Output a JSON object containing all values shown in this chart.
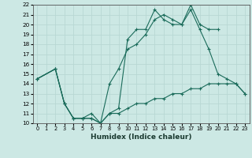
{
  "title": "",
  "xlabel": "Humidex (Indice chaleur)",
  "bg_color": "#cce8e4",
  "line_color": "#1a6b5a",
  "grid_color": "#b8d8d4",
  "xlim": [
    -0.5,
    23.5
  ],
  "ylim": [
    10,
    22
  ],
  "xticks": [
    0,
    1,
    2,
    3,
    4,
    5,
    6,
    7,
    8,
    9,
    10,
    11,
    12,
    13,
    14,
    15,
    16,
    17,
    18,
    19,
    20,
    21,
    22,
    23
  ],
  "yticks": [
    10,
    11,
    12,
    13,
    14,
    15,
    16,
    17,
    18,
    19,
    20,
    21,
    22
  ],
  "series": [
    {
      "x": [
        0,
        2,
        3,
        4,
        5,
        6,
        7,
        8,
        9,
        10,
        11,
        12,
        13,
        14,
        15,
        16,
        17,
        18,
        19,
        20
      ],
      "y": [
        14.5,
        15.5,
        12.0,
        10.5,
        10.5,
        10.5,
        10.0,
        11.0,
        11.5,
        18.5,
        19.5,
        19.5,
        21.5,
        20.5,
        20.0,
        20.0,
        22.0,
        20.0,
        19.5,
        19.5
      ]
    },
    {
      "x": [
        0,
        2,
        3,
        4,
        5,
        6,
        7,
        8,
        9,
        10,
        11,
        12,
        13,
        14,
        15,
        16,
        17,
        18,
        19,
        20,
        21,
        22,
        23
      ],
      "y": [
        14.5,
        15.5,
        12.0,
        10.5,
        10.5,
        11.0,
        10.0,
        14.0,
        15.5,
        17.5,
        18.0,
        19.0,
        20.5,
        21.0,
        20.5,
        20.0,
        21.5,
        19.5,
        17.5,
        15.0,
        14.5,
        14.0,
        13.0
      ]
    },
    {
      "x": [
        0,
        2,
        3,
        4,
        5,
        6,
        7,
        8,
        9,
        10,
        11,
        12,
        13,
        14,
        15,
        16,
        17,
        18,
        19,
        20,
        21,
        22,
        23
      ],
      "y": [
        14.5,
        15.5,
        12.0,
        10.5,
        10.5,
        10.5,
        10.0,
        11.0,
        11.0,
        11.5,
        12.0,
        12.0,
        12.5,
        12.5,
        13.0,
        13.0,
        13.5,
        13.5,
        14.0,
        14.0,
        14.0,
        14.0,
        13.0
      ]
    }
  ]
}
